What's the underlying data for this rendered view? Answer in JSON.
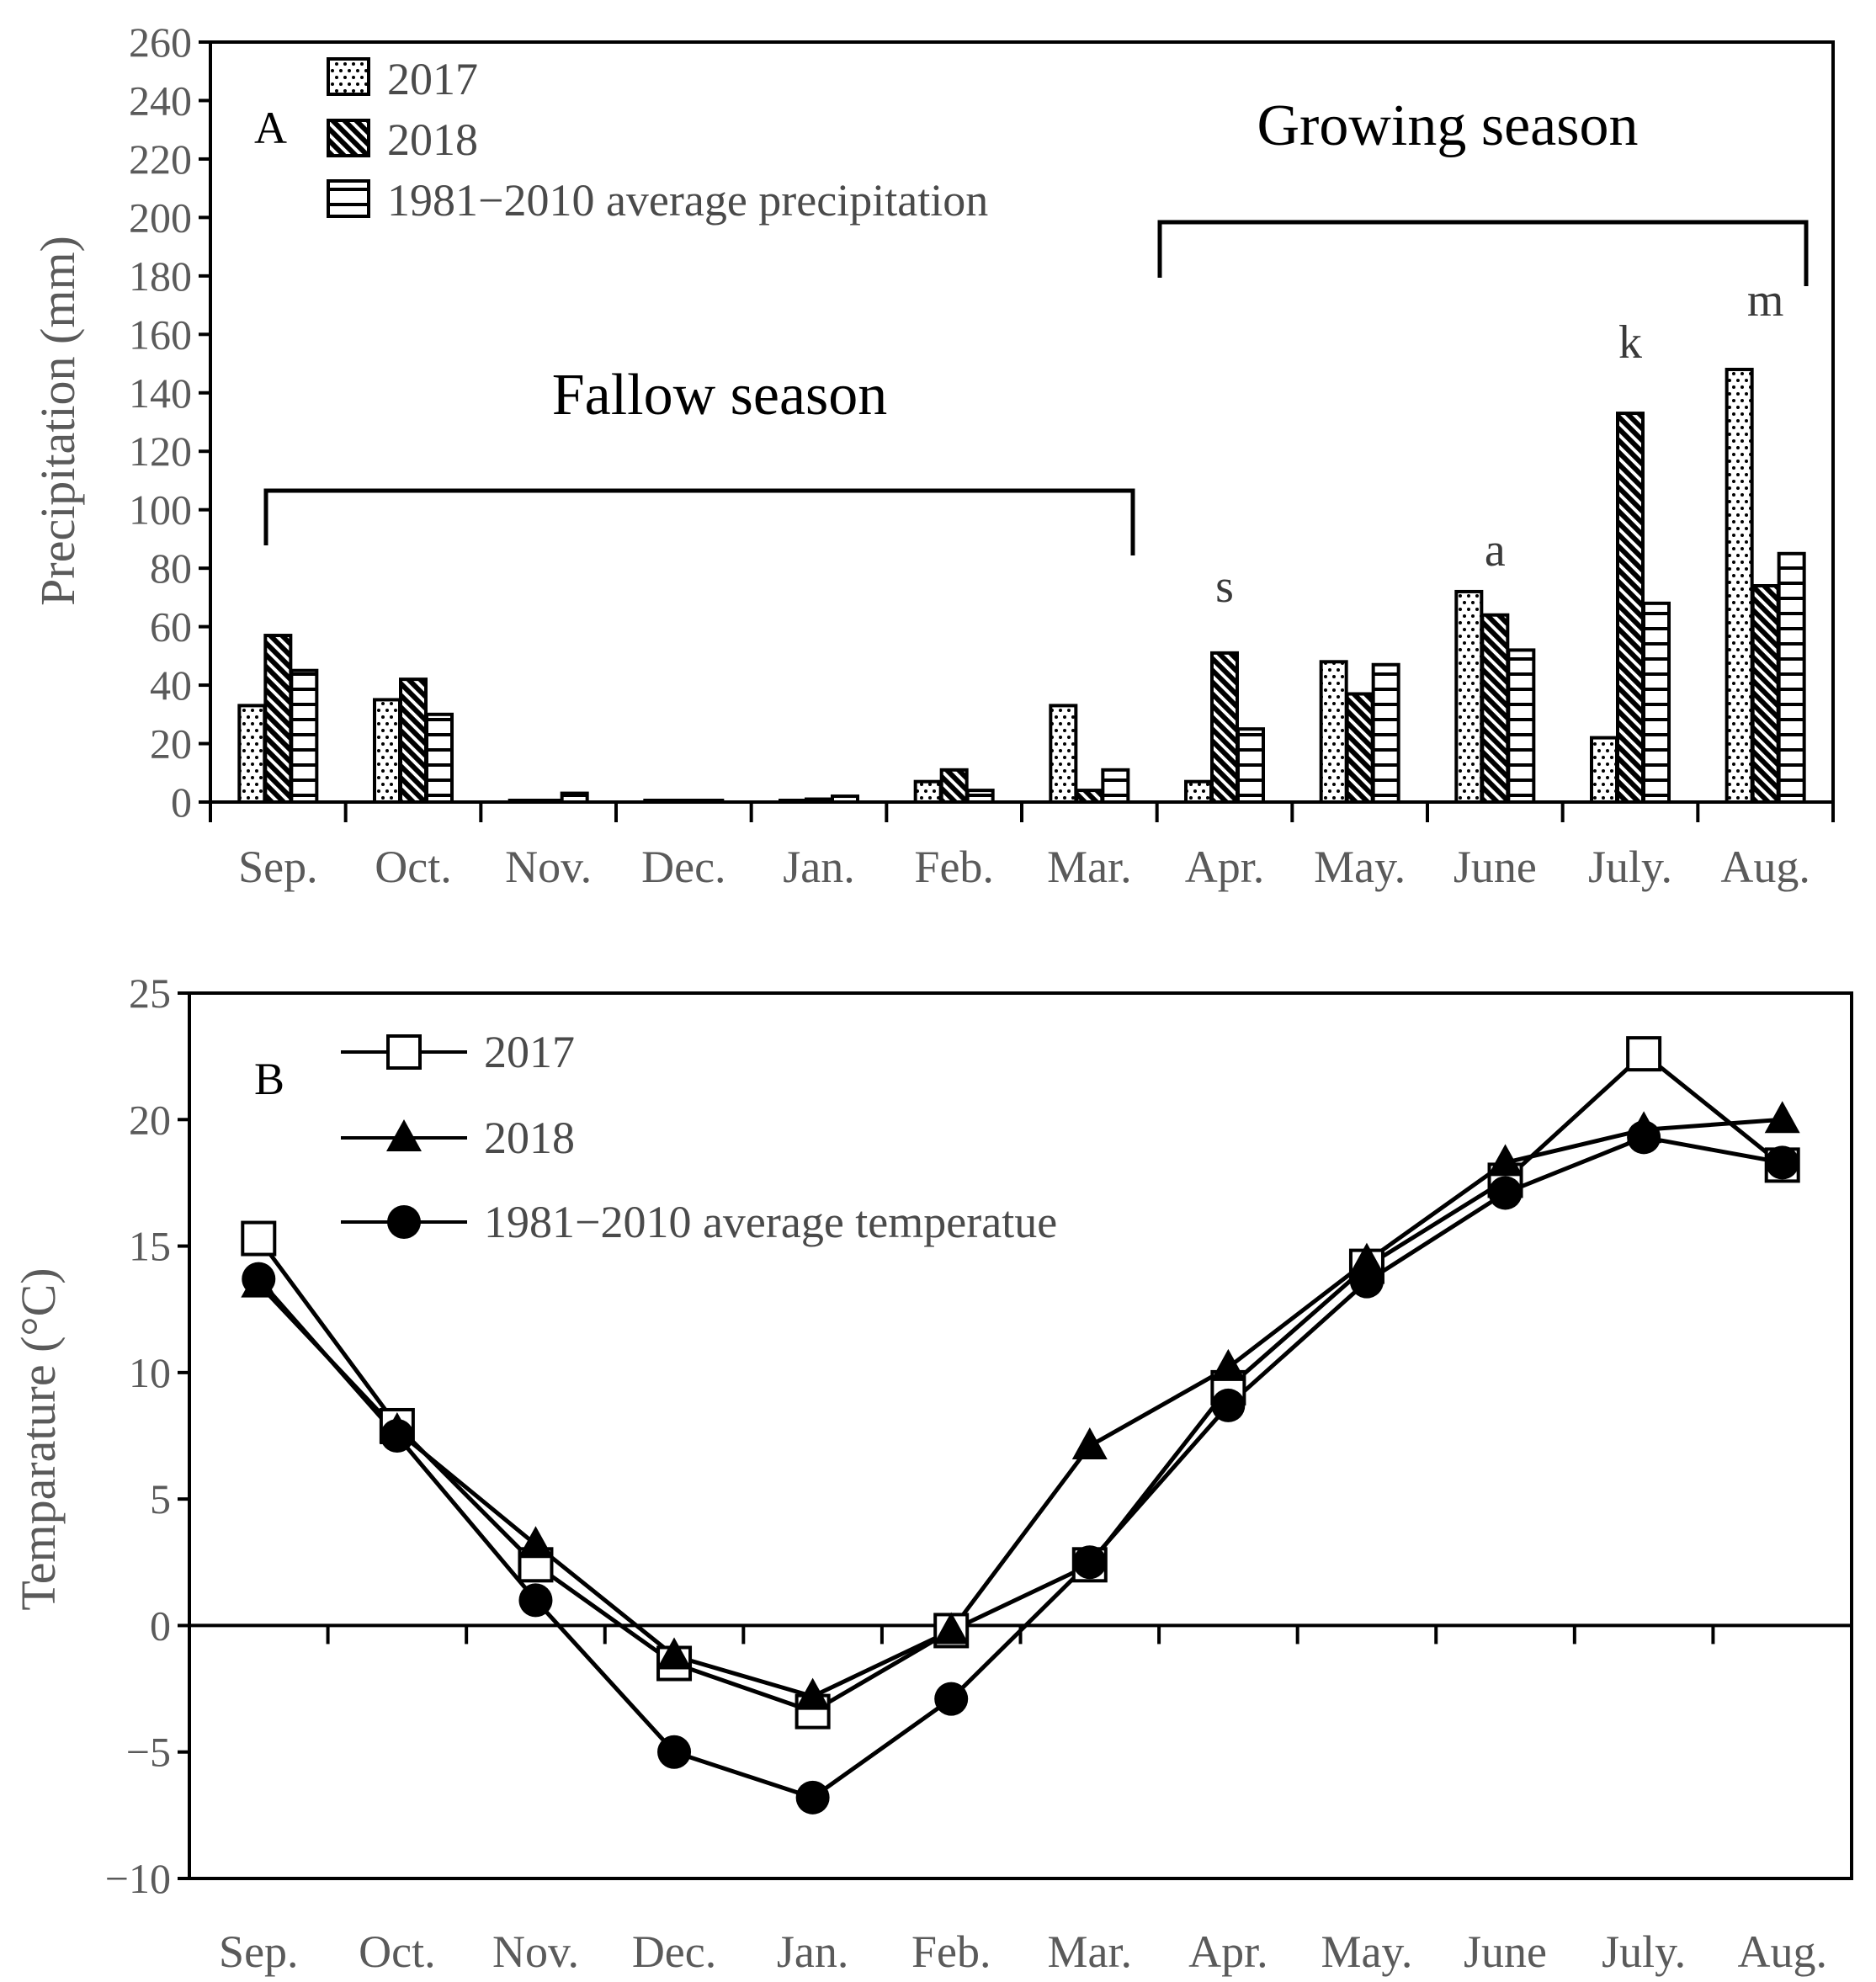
{
  "chart_data": [
    {
      "type": "bar",
      "panel_label": "A",
      "title": "",
      "xlabel": "",
      "ylabel": "Precipitation (mm)",
      "ylim": [
        0,
        260
      ],
      "yticks": [
        0,
        20,
        40,
        60,
        80,
        100,
        120,
        140,
        160,
        180,
        200,
        220,
        240,
        260
      ],
      "categories": [
        "Sep.",
        "Oct.",
        "Nov.",
        "Dec.",
        "Jan.",
        "Feb.",
        "Mar.",
        "Apr.",
        "May.",
        "June",
        "July.",
        "Aug."
      ],
      "series": [
        {
          "name": "2017",
          "pattern": "dots",
          "values": [
            33,
            35,
            0.5,
            0.5,
            0.5,
            7,
            33,
            7,
            48,
            72,
            22,
            148
          ]
        },
        {
          "name": "2018",
          "pattern": "diagonal",
          "values": [
            57,
            42,
            0.5,
            0.5,
            1,
            11,
            4,
            51,
            37,
            64,
            133,
            74
          ]
        },
        {
          "name": "1981−2010 average precipitation",
          "pattern": "horizontal",
          "values": [
            45,
            30,
            3,
            0.5,
            2,
            4,
            11,
            25,
            47,
            52,
            68,
            85
          ]
        }
      ],
      "annotations": {
        "growing_season": "Growing season",
        "fallow_season": "Fallow season",
        "letters": [
          {
            "text": "s",
            "category": "Apr."
          },
          {
            "text": "a",
            "category": "June"
          },
          {
            "text": "k",
            "category": "July."
          },
          {
            "text": "m",
            "category": "Aug."
          }
        ]
      },
      "legend_position": "top-left"
    },
    {
      "type": "line",
      "panel_label": "B",
      "title": "",
      "xlabel": "",
      "ylabel": "Temparature (°C)",
      "ylim": [
        -10,
        25
      ],
      "yticks": [
        -10,
        -5,
        0,
        5,
        10,
        15,
        20,
        25
      ],
      "ytick_labels": [
        "−10",
        "−5",
        "0",
        "5",
        "10",
        "15",
        "20",
        "25"
      ],
      "categories": [
        "Sep.",
        "Oct.",
        "Nov.",
        "Dec.",
        "Jan.",
        "Feb.",
        "Mar.",
        "Apr.",
        "May.",
        "June",
        "July.",
        "Aug."
      ],
      "series": [
        {
          "name": "2017",
          "marker": "open-square",
          "values": [
            15.3,
            7.9,
            2.4,
            -1.5,
            -3.4,
            -0.2,
            2.4,
            9.4,
            14.2,
            17.6,
            22.6,
            18.2
          ]
        },
        {
          "name": "2018",
          "marker": "filled-triangle",
          "values": [
            13.5,
            7.7,
            3.2,
            -1.2,
            -2.8,
            -0.2,
            7.1,
            10.2,
            14.4,
            18.3,
            19.6,
            20.0
          ]
        },
        {
          "name": "1981−2010 average temperatue",
          "marker": "filled-circle",
          "values": [
            13.7,
            7.5,
            1.0,
            -5.0,
            -6.8,
            -2.9,
            2.5,
            8.7,
            13.6,
            17.1,
            19.3,
            18.3
          ]
        }
      ],
      "legend_position": "top-left"
    }
  ]
}
